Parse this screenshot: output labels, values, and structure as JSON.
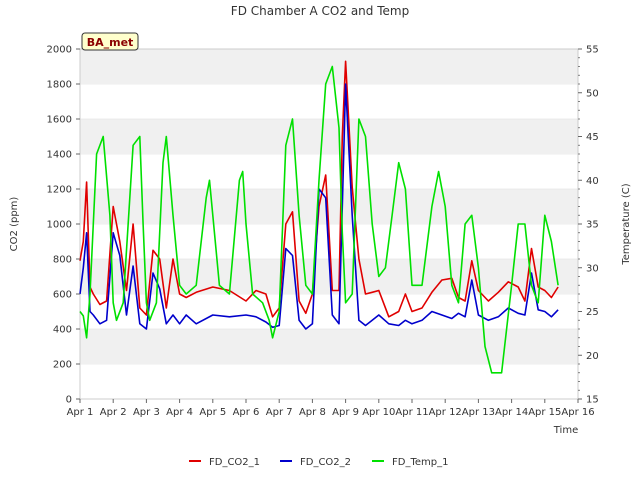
{
  "chart_data": {
    "type": "line",
    "title": "FD Chamber A CO2 and Temp",
    "site_badge": "BA_met",
    "xlabel": "Time",
    "ylabel": "CO2 (ppm)",
    "y2label": "Temperature (C)",
    "xlim": [
      0,
      15
    ],
    "ylim": [
      0,
      2000
    ],
    "y2lim": [
      15,
      55
    ],
    "x_tick_labels": [
      "Apr 1",
      "Apr 2",
      "Apr 3",
      "Apr 4",
      "Apr 5",
      "Apr 6",
      "Apr 7",
      "Apr 8",
      "Apr 9",
      "Apr 10",
      "Apr 11",
      "Apr 12",
      "Apr 13",
      "Apr 14",
      "Apr 15",
      "Apr 16"
    ],
    "y_ticks": [
      0,
      200,
      400,
      600,
      800,
      1000,
      1200,
      1400,
      1600,
      1800,
      2000
    ],
    "y2_ticks": [
      15,
      20,
      25,
      30,
      35,
      40,
      45,
      50,
      55
    ],
    "grid": "horizontal bands",
    "legend_position": "bottom",
    "colors": {
      "FD_CO2_1": "#e00000",
      "FD_CO2_2": "#0000cc",
      "FD_Temp_1": "#00e000"
    },
    "series": [
      {
        "name": "FD_CO2_1",
        "axis": "left",
        "x": [
          0.0,
          0.1,
          0.2,
          0.3,
          0.4,
          0.6,
          0.8,
          1.0,
          1.2,
          1.4,
          1.6,
          1.8,
          2.0,
          2.2,
          2.4,
          2.6,
          2.8,
          3.0,
          3.2,
          3.5,
          4.0,
          4.5,
          5.0,
          5.3,
          5.6,
          5.8,
          6.0,
          6.2,
          6.4,
          6.6,
          6.8,
          7.0,
          7.2,
          7.4,
          7.6,
          7.8,
          7.9,
          8.0,
          8.2,
          8.4,
          8.6,
          8.8,
          9.0,
          9.3,
          9.6,
          9.8,
          10.0,
          10.3,
          10.6,
          10.9,
          11.2,
          11.4,
          11.6,
          11.8,
          12.0,
          12.3,
          12.6,
          12.9,
          13.2,
          13.4,
          13.6,
          13.8,
          14.0,
          14.2,
          14.4
        ],
        "y": [
          790,
          900,
          1240,
          640,
          600,
          540,
          560,
          1100,
          900,
          620,
          1000,
          520,
          480,
          850,
          800,
          520,
          800,
          600,
          580,
          610,
          640,
          620,
          560,
          620,
          600,
          470,
          520,
          1000,
          1070,
          560,
          490,
          600,
          1100,
          1280,
          620,
          620,
          1500,
          1930,
          1210,
          800,
          600,
          610,
          620,
          470,
          500,
          600,
          500,
          520,
          610,
          680,
          690,
          580,
          560,
          790,
          620,
          560,
          610,
          670,
          640,
          560,
          860,
          640,
          620,
          580,
          640
        ]
      },
      {
        "name": "FD_CO2_2",
        "axis": "left",
        "x": [
          0.0,
          0.1,
          0.2,
          0.3,
          0.4,
          0.6,
          0.8,
          1.0,
          1.2,
          1.4,
          1.6,
          1.8,
          2.0,
          2.2,
          2.4,
          2.6,
          2.8,
          3.0,
          3.2,
          3.5,
          4.0,
          4.5,
          5.0,
          5.3,
          5.6,
          5.8,
          6.0,
          6.2,
          6.4,
          6.6,
          6.8,
          7.0,
          7.2,
          7.4,
          7.6,
          7.8,
          7.9,
          8.0,
          8.2,
          8.4,
          8.6,
          8.8,
          9.0,
          9.3,
          9.6,
          9.8,
          10.0,
          10.3,
          10.6,
          10.9,
          11.2,
          11.4,
          11.6,
          11.8,
          12.0,
          12.3,
          12.6,
          12.9,
          13.2,
          13.4,
          13.6,
          13.8,
          14.0,
          14.2,
          14.4
        ],
        "y": [
          600,
          750,
          950,
          500,
          480,
          430,
          450,
          950,
          820,
          480,
          760,
          430,
          400,
          720,
          630,
          430,
          480,
          430,
          480,
          430,
          480,
          470,
          480,
          470,
          440,
          410,
          420,
          860,
          820,
          450,
          400,
          430,
          1200,
          1150,
          480,
          430,
          1100,
          1800,
          1050,
          450,
          420,
          450,
          480,
          430,
          420,
          450,
          430,
          450,
          500,
          480,
          460,
          490,
          470,
          680,
          480,
          450,
          470,
          520,
          490,
          480,
          720,
          510,
          500,
          470,
          510
        ]
      },
      {
        "name": "FD_Temp_1",
        "axis": "right",
        "x": [
          0.0,
          0.1,
          0.2,
          0.3,
          0.5,
          0.7,
          0.9,
          1.0,
          1.1,
          1.3,
          1.6,
          1.8,
          1.9,
          2.0,
          2.1,
          2.3,
          2.5,
          2.6,
          2.8,
          3.0,
          3.2,
          3.5,
          3.8,
          3.9,
          4.0,
          4.2,
          4.5,
          4.8,
          4.9,
          5.0,
          5.2,
          5.5,
          5.7,
          5.8,
          6.0,
          6.2,
          6.4,
          6.6,
          6.8,
          7.0,
          7.2,
          7.4,
          7.6,
          7.8,
          7.9,
          8.0,
          8.2,
          8.4,
          8.6,
          8.8,
          9.0,
          9.2,
          9.4,
          9.6,
          9.8,
          10.0,
          10.3,
          10.6,
          10.8,
          11.0,
          11.2,
          11.4,
          11.6,
          11.8,
          12.0,
          12.2,
          12.4,
          12.7,
          13.0,
          13.2,
          13.4,
          13.6,
          13.8,
          14.0,
          14.2,
          14.4
        ],
        "y": [
          25,
          24.5,
          22,
          27,
          43,
          45,
          36,
          26,
          24,
          26,
          44,
          45,
          35,
          26,
          24,
          26,
          42,
          45,
          36,
          28,
          27,
          28,
          38,
          40,
          36,
          28,
          27,
          40,
          41,
          35,
          27,
          26,
          24,
          22,
          25,
          44,
          47,
          36,
          28,
          27,
          40,
          51,
          53,
          46,
          34,
          26,
          27,
          47,
          45,
          35,
          29,
          30,
          36,
          42,
          39,
          28,
          28,
          37,
          41,
          37,
          28,
          26,
          35,
          36,
          30,
          21,
          18,
          18,
          28,
          35,
          35,
          28,
          26,
          36,
          33,
          28
        ]
      }
    ]
  }
}
